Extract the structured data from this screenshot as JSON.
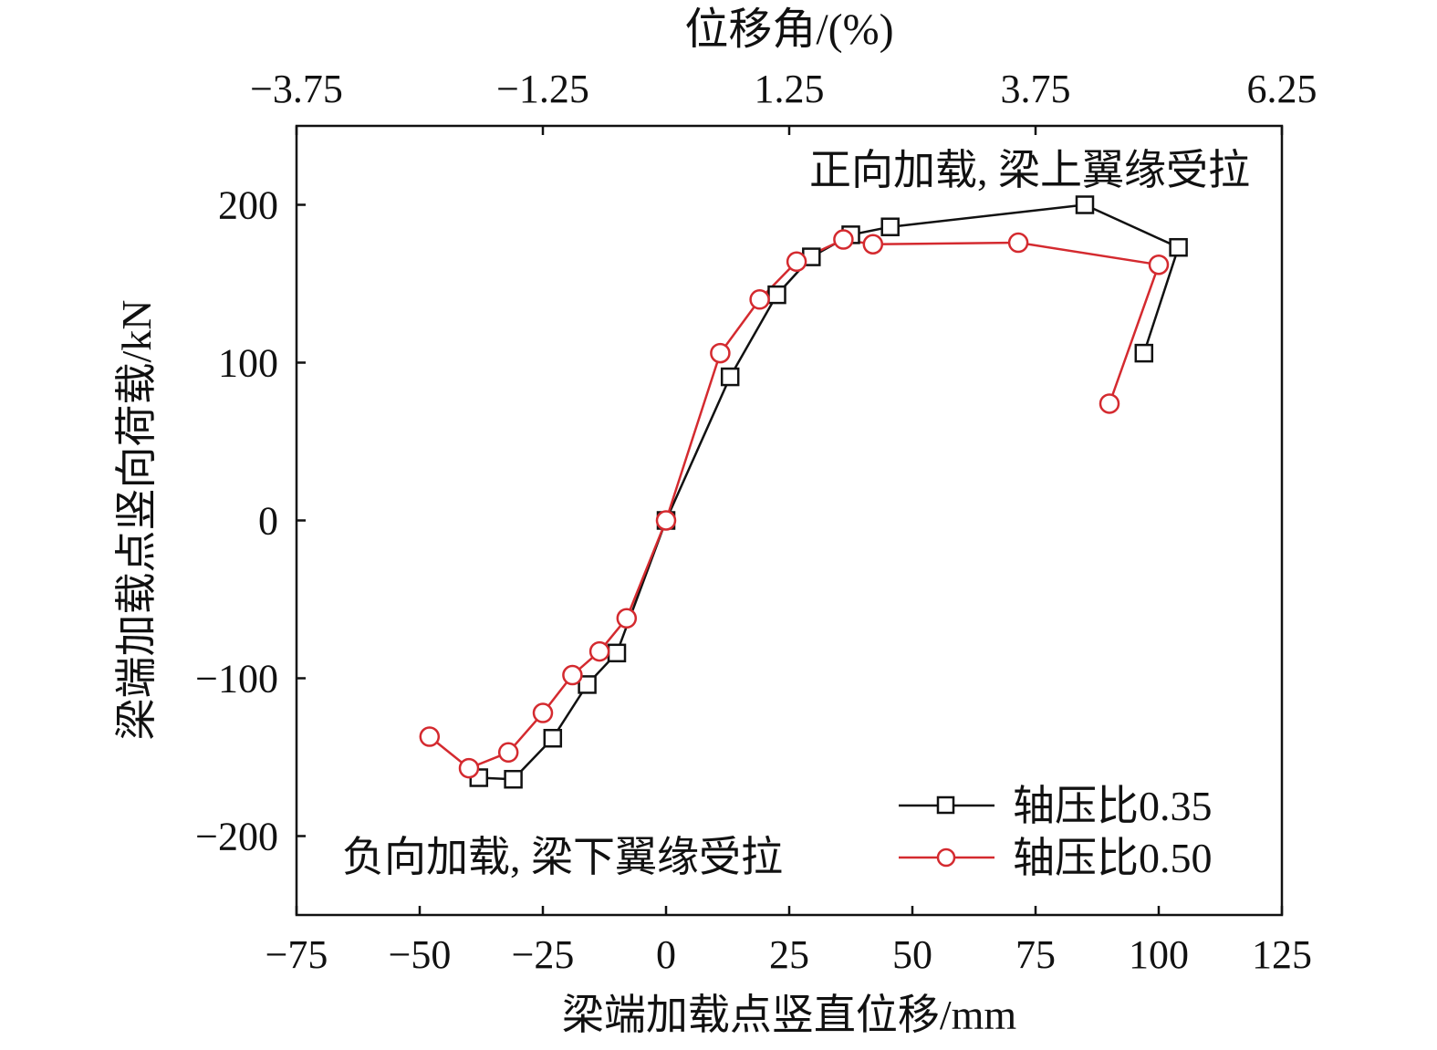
{
  "chart_data": {
    "type": "line",
    "xlabel": "梁端加载点竖直位移/mm",
    "ylabel": "梁端加载点竖向荷载/kN",
    "top_axis_label": "位移角/(%)",
    "xlim": [
      -75,
      125
    ],
    "ylim": [
      -250,
      250
    ],
    "x_ticks": [
      "−75",
      "−50",
      "−25",
      "0",
      "25",
      "50",
      "75",
      "100",
      "125"
    ],
    "x_tick_values": [
      -75,
      -50,
      -25,
      0,
      25,
      50,
      75,
      100,
      125
    ],
    "y_ticks": [
      "200",
      "100",
      "0",
      "−100",
      "−200"
    ],
    "y_tick_values": [
      200,
      100,
      0,
      -100,
      -200
    ],
    "top_ticks": [
      "−3.75",
      "−1.25",
      "1.25",
      "3.75",
      "6.25"
    ],
    "top_tick_values": [
      -3.75,
      -1.25,
      1.25,
      3.75,
      6.25
    ],
    "top_to_bottom_scale": 20,
    "annotations": {
      "positive": "正向加载, 梁上翼缘受拉",
      "negative": "负向加载, 梁下翼缘受拉"
    },
    "legend_position": "bottom-right",
    "series": [
      {
        "name": "轴压比0.35",
        "color": "#111111",
        "marker": "square",
        "points": [
          [
            -38,
            -163
          ],
          [
            -31,
            -164
          ],
          [
            -23,
            -138
          ],
          [
            -16,
            -104
          ],
          [
            -10,
            -84
          ],
          [
            0,
            0
          ],
          [
            13,
            91
          ],
          [
            22.5,
            143
          ],
          [
            29.5,
            167
          ],
          [
            37.5,
            181
          ],
          [
            45.5,
            186
          ],
          [
            85,
            200
          ],
          [
            104,
            173
          ],
          [
            97,
            106
          ]
        ]
      },
      {
        "name": "轴压比0.50",
        "color": "#d42a2f",
        "marker": "circle",
        "points": [
          [
            -48,
            -137
          ],
          [
            -40,
            -157
          ],
          [
            -32,
            -147
          ],
          [
            -25,
            -122
          ],
          [
            -19,
            -98
          ],
          [
            -13.5,
            -83
          ],
          [
            -8,
            -62
          ],
          [
            0,
            0
          ],
          [
            11,
            106
          ],
          [
            19,
            140
          ],
          [
            26.5,
            164
          ],
          [
            36,
            178
          ],
          [
            42,
            175
          ],
          [
            71.5,
            176
          ],
          [
            100,
            162
          ],
          [
            90,
            74
          ]
        ]
      }
    ]
  }
}
